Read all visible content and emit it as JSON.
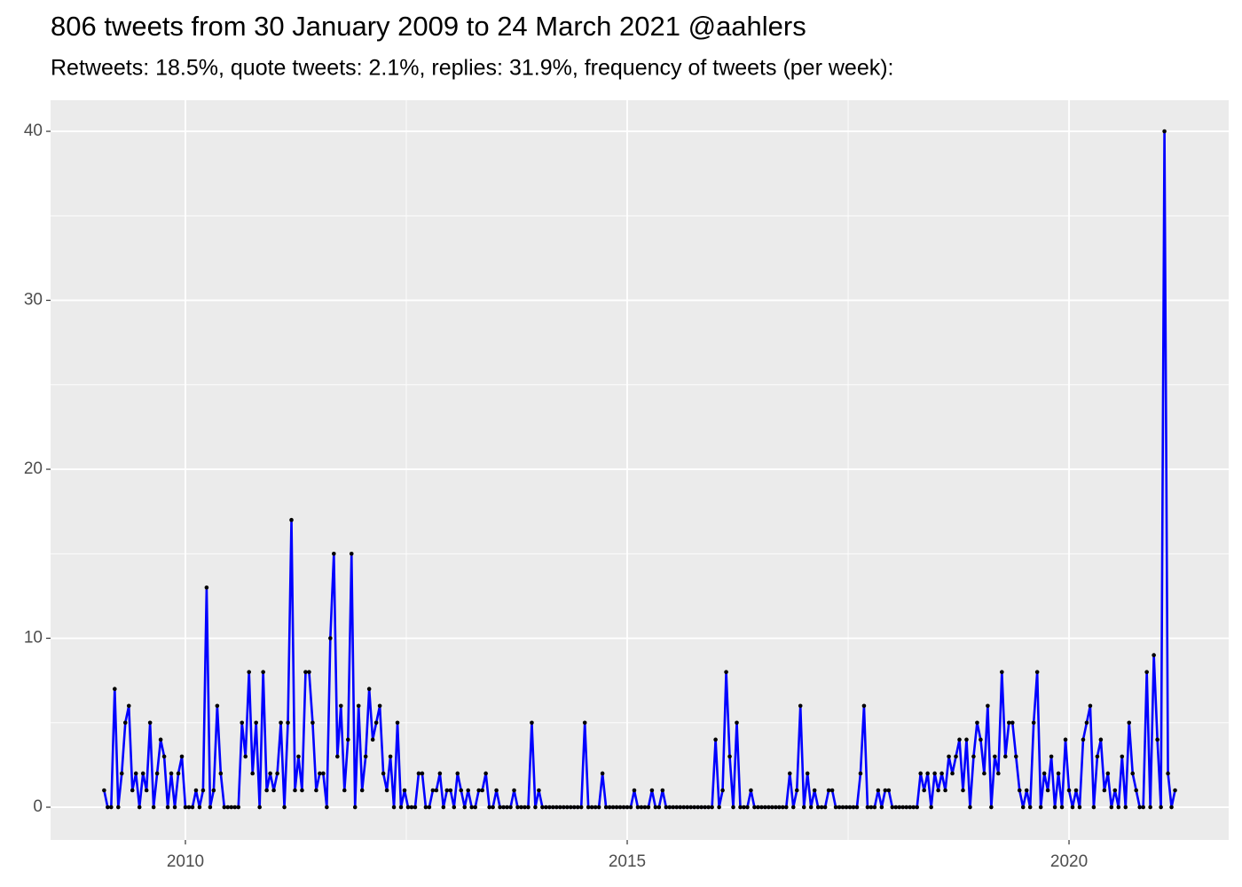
{
  "chart_data": {
    "type": "line",
    "title": "806 tweets from 30 January 2009 to 24 March 2021 @aahlers",
    "subtitle": "Retweets: 18.5%, quote tweets: 2.1%, replies: 31.9%, frequency of tweets (per week):",
    "xlim": [
      2008.474,
      2021.807
    ],
    "xticks": [
      2010,
      2015,
      2020
    ],
    "xminor": [
      2012.5,
      2017.5
    ],
    "ylim": [
      -1.94,
      41.84
    ],
    "yticks": [
      0,
      10,
      20,
      30,
      40
    ],
    "yminor": [
      5,
      15,
      25,
      35
    ],
    "grid": true,
    "line_color": "#0000ff",
    "point_color": "#000000",
    "x": [
      2009.08,
      2009.12,
      2009.16,
      2009.2,
      2009.24,
      2009.28,
      2009.32,
      2009.36,
      2009.4,
      2009.44,
      2009.48,
      2009.52,
      2009.56,
      2009.6,
      2009.64,
      2009.68,
      2009.72,
      2009.76,
      2009.8,
      2009.84,
      2009.88,
      2009.92,
      2009.96,
      2010,
      2010.04,
      2010.08,
      2010.12,
      2010.16,
      2010.2,
      2010.24,
      2010.28,
      2010.32,
      2010.36,
      2010.4,
      2010.44,
      2010.48,
      2010.52,
      2010.56,
      2010.6,
      2010.64,
      2010.68,
      2010.72,
      2010.76,
      2010.8,
      2010.84,
      2010.88,
      2010.92,
      2010.96,
      2011,
      2011.04,
      2011.08,
      2011.12,
      2011.16,
      2011.2,
      2011.24,
      2011.28,
      2011.32,
      2011.36,
      2011.4,
      2011.44,
      2011.48,
      2011.52,
      2011.56,
      2011.6,
      2011.64,
      2011.68,
      2011.72,
      2011.76,
      2011.8,
      2011.84,
      2011.88,
      2011.92,
      2011.96,
      2012,
      2012.04,
      2012.08,
      2012.12,
      2012.16,
      2012.2,
      2012.24,
      2012.28,
      2012.32,
      2012.36,
      2012.4,
      2012.44,
      2012.48,
      2012.52,
      2012.56,
      2012.6,
      2012.64,
      2012.68,
      2012.72,
      2012.76,
      2012.8,
      2012.84,
      2012.88,
      2012.92,
      2012.96,
      2013,
      2013.04,
      2013.08,
      2013.12,
      2013.16,
      2013.2,
      2013.24,
      2013.28,
      2013.32,
      2013.36,
      2013.4,
      2013.44,
      2013.48,
      2013.52,
      2013.56,
      2013.6,
      2013.64,
      2013.68,
      2013.72,
      2013.76,
      2013.8,
      2013.84,
      2013.88,
      2013.92,
      2013.96,
      2014,
      2014.04,
      2014.08,
      2014.12,
      2014.16,
      2014.2,
      2014.24,
      2014.28,
      2014.32,
      2014.36,
      2014.4,
      2014.44,
      2014.48,
      2014.52,
      2014.56,
      2014.6,
      2014.64,
      2014.68,
      2014.72,
      2014.76,
      2014.8,
      2014.84,
      2014.88,
      2014.92,
      2014.96,
      2015,
      2015.04,
      2015.08,
      2015.12,
      2015.16,
      2015.2,
      2015.24,
      2015.28,
      2015.32,
      2015.36,
      2015.4,
      2015.44,
      2015.48,
      2015.52,
      2015.56,
      2015.6,
      2015.64,
      2015.68,
      2015.72,
      2015.76,
      2015.8,
      2015.84,
      2015.88,
      2015.92,
      2015.96,
      2016,
      2016.04,
      2016.08,
      2016.12,
      2016.16,
      2016.2,
      2016.24,
      2016.28,
      2016.32,
      2016.36,
      2016.4,
      2016.44,
      2016.48,
      2016.52,
      2016.56,
      2016.6,
      2016.64,
      2016.68,
      2016.72,
      2016.76,
      2016.8,
      2016.84,
      2016.88,
      2016.92,
      2016.96,
      2017,
      2017.04,
      2017.08,
      2017.12,
      2017.16,
      2017.2,
      2017.24,
      2017.28,
      2017.32,
      2017.36,
      2017.4,
      2017.44,
      2017.48,
      2017.52,
      2017.56,
      2017.6,
      2017.64,
      2017.68,
      2017.72,
      2017.76,
      2017.8,
      2017.84,
      2017.88,
      2017.92,
      2017.96,
      2018,
      2018.04,
      2018.08,
      2018.12,
      2018.16,
      2018.2,
      2018.24,
      2018.28,
      2018.32,
      2018.36,
      2018.4,
      2018.44,
      2018.48,
      2018.52,
      2018.56,
      2018.6,
      2018.64,
      2018.68,
      2018.72,
      2018.76,
      2018.8,
      2018.84,
      2018.88,
      2018.92,
      2018.96,
      2019,
      2019.04,
      2019.08,
      2019.12,
      2019.16,
      2019.2,
      2019.24,
      2019.28,
      2019.32,
      2019.36,
      2019.4,
      2019.44,
      2019.48,
      2019.52,
      2019.56,
      2019.6,
      2019.64,
      2019.68,
      2019.72,
      2019.76,
      2019.8,
      2019.84,
      2019.88,
      2019.92,
      2019.96,
      2020,
      2020.04,
      2020.08,
      2020.12,
      2020.16,
      2020.2,
      2020.24,
      2020.28,
      2020.32,
      2020.36,
      2020.4,
      2020.44,
      2020.48,
      2020.52,
      2020.56,
      2020.6,
      2020.64,
      2020.68,
      2020.72,
      2020.76,
      2020.8,
      2020.84,
      2020.88,
      2020.92,
      2020.96,
      2021,
      2021.04,
      2021.08,
      2021.12,
      2021.16,
      2021.2
    ],
    "values": [
      1,
      0,
      0,
      7,
      0,
      2,
      5,
      6,
      1,
      2,
      0,
      2,
      1,
      5,
      0,
      2,
      4,
      3,
      0,
      2,
      0,
      2,
      3,
      0,
      0,
      0,
      1,
      0,
      1,
      13,
      0,
      1,
      6,
      2,
      0,
      0,
      0,
      0,
      0,
      5,
      3,
      8,
      2,
      5,
      0,
      8,
      1,
      2,
      1,
      2,
      5,
      0,
      5,
      17,
      1,
      3,
      1,
      8,
      8,
      5,
      1,
      2,
      2,
      0,
      10,
      15,
      3,
      6,
      1,
      4,
      15,
      0,
      6,
      1,
      3,
      7,
      4,
      5,
      6,
      2,
      1,
      3,
      0,
      5,
      0,
      1,
      0,
      0,
      0,
      2,
      2,
      0,
      0,
      1,
      1,
      2,
      0,
      1,
      1,
      0,
      2,
      1,
      0,
      1,
      0,
      0,
      1,
      1,
      2,
      0,
      0,
      1,
      0,
      0,
      0,
      0,
      1,
      0,
      0,
      0,
      0,
      5,
      0,
      1,
      0,
      0,
      0,
      0,
      0,
      0,
      0,
      0,
      0,
      0,
      0,
      0,
      5,
      0,
      0,
      0,
      0,
      2,
      0,
      0,
      0,
      0,
      0,
      0,
      0,
      0,
      1,
      0,
      0,
      0,
      0,
      1,
      0,
      0,
      1,
      0,
      0,
      0,
      0,
      0,
      0,
      0,
      0,
      0,
      0,
      0,
      0,
      0,
      0,
      4,
      0,
      1,
      8,
      3,
      0,
      5,
      0,
      0,
      0,
      1,
      0,
      0,
      0,
      0,
      0,
      0,
      0,
      0,
      0,
      0,
      2,
      0,
      1,
      6,
      0,
      2,
      0,
      1,
      0,
      0,
      0,
      1,
      1,
      0,
      0,
      0,
      0,
      0,
      0,
      0,
      2,
      6,
      0,
      0,
      0,
      1,
      0,
      1,
      1,
      0,
      0,
      0,
      0,
      0,
      0,
      0,
      0,
      2,
      1,
      2,
      0,
      2,
      1,
      2,
      1,
      3,
      2,
      3,
      4,
      1,
      4,
      0,
      3,
      5,
      4,
      2,
      6,
      0,
      3,
      2,
      8,
      3,
      5,
      5,
      3,
      1,
      0,
      1,
      0,
      5,
      8,
      0,
      2,
      1,
      3,
      0,
      2,
      0,
      4,
      1,
      0,
      1,
      0,
      4,
      5,
      6,
      0,
      3,
      4,
      1,
      2,
      0,
      1,
      0,
      3,
      0,
      5,
      2,
      1,
      0,
      0,
      8,
      0,
      9,
      4,
      0,
      40,
      2,
      0,
      1
    ]
  }
}
